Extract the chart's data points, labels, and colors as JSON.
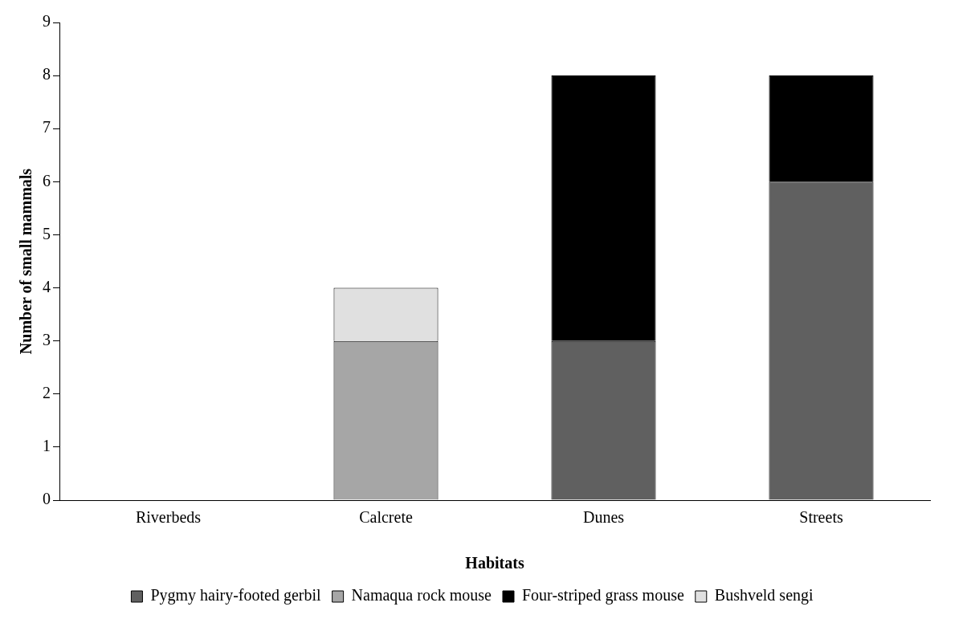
{
  "chart_data": {
    "type": "bar",
    "stacked": true,
    "xlabel": "Habitats",
    "ylabel": "Number of small mammals",
    "categories": [
      "Riverbeds",
      "Calcrete",
      "Dunes",
      "Streets"
    ],
    "series": [
      {
        "name": "Pygmy hairy-footed gerbil",
        "color": "#606060",
        "values": [
          0,
          0,
          3,
          6
        ]
      },
      {
        "name": "Namaqua rock mouse",
        "color": "#a6a6a6",
        "values": [
          0,
          3,
          0,
          0
        ]
      },
      {
        "name": "Four-striped grass mouse",
        "color": "#000000",
        "values": [
          0,
          0,
          5,
          2
        ]
      },
      {
        "name": "Bushveld sengi",
        "color": "#e0e0e0",
        "values": [
          0,
          1,
          0,
          0
        ]
      }
    ],
    "ylim": [
      0,
      9
    ],
    "yticks": [
      0,
      1,
      2,
      3,
      4,
      5,
      6,
      7,
      8,
      9
    ],
    "grid": false,
    "legend": "bottom"
  }
}
